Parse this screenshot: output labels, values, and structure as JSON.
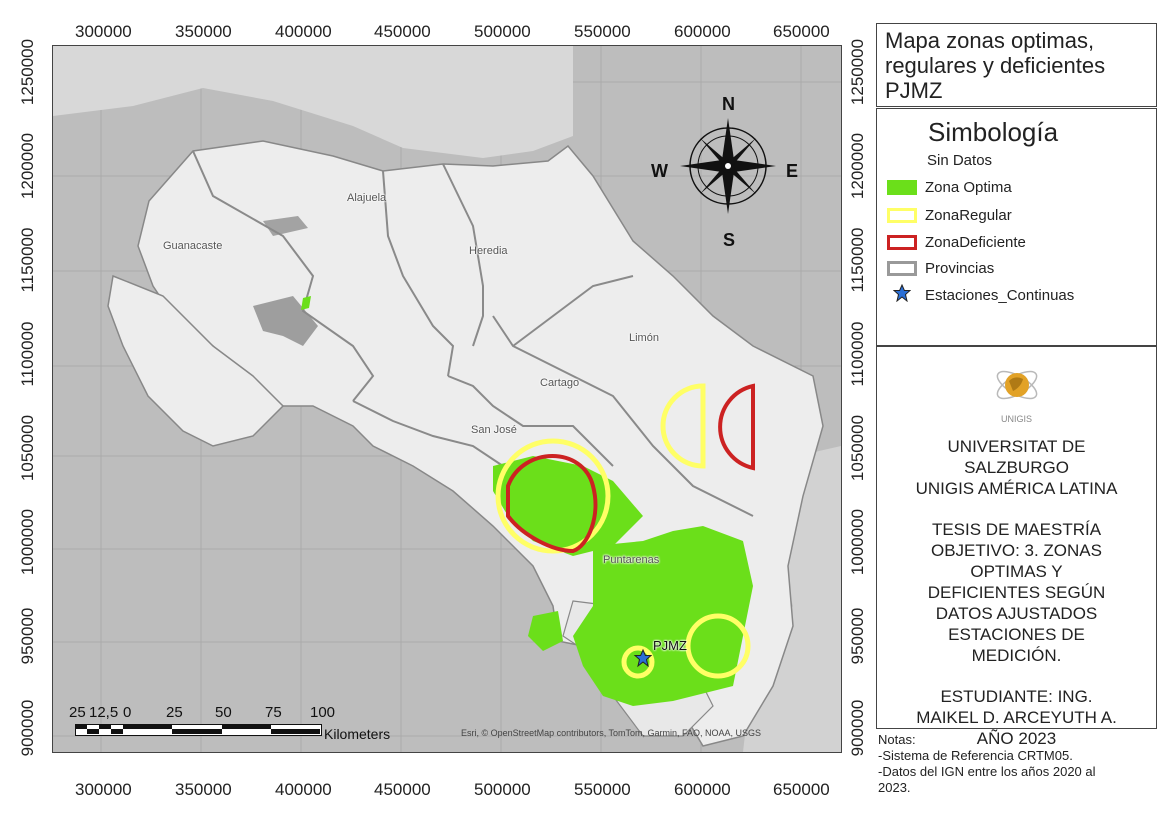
{
  "title": "Mapa zonas optimas, regulares y deficientes PJMZ",
  "legend": {
    "title": "Simbología",
    "items": [
      {
        "label": "Sin Datos",
        "color": "#ffffff"
      },
      {
        "label": "Zona Optima",
        "color": "#6bdf1a"
      },
      {
        "label": "ZonaRegular",
        "color": "#ffff66"
      },
      {
        "label": "ZonaDeficiente",
        "color": "#cc2222"
      },
      {
        "label": "Provincias",
        "color": "#888888"
      },
      {
        "label": "Estaciones_Continuas",
        "color": "#2a6fd6"
      }
    ]
  },
  "institution": {
    "logo_text": "UNIGIS",
    "lines": [
      "UNIVERSITAT DE",
      "SALZBURGO",
      "UNIGIS AMÉRICA LATINA"
    ]
  },
  "thesis": {
    "lines": [
      "TESIS DE MAESTRÍA",
      "OBJETIVO: 3. ZONAS",
      "OPTIMAS Y",
      "DEFICIENTES SEGÚN",
      "DATOS AJUSTADOS",
      "ESTACIONES DE",
      "MEDICIÓN."
    ]
  },
  "student": {
    "lines": [
      "ESTUDIANTE: ING.",
      "MAIKEL D. ARCEYUTH A.",
      "AÑO 2023"
    ]
  },
  "notes": {
    "lines": [
      "Notas:",
      "-Sistema de Referencia CRTM05.",
      "-Datos del IGN entre los años 2020 al",
      "2023."
    ]
  },
  "axes": {
    "x_ticks": [
      "300000",
      "350000",
      "400000",
      "450000",
      "500000",
      "550000",
      "600000",
      "650000"
    ],
    "y_ticks": [
      "1250000",
      "1200000",
      "1150000",
      "1100000",
      "1050000",
      "1000000",
      "950000",
      "900000"
    ]
  },
  "compass": {
    "n": "N",
    "s": "S",
    "e": "E",
    "w": "W"
  },
  "places": [
    {
      "name": "Alajuela"
    },
    {
      "name": "Guanacaste"
    },
    {
      "name": "Heredia"
    },
    {
      "name": "Limón"
    },
    {
      "name": "Cartago"
    },
    {
      "name": "San José"
    },
    {
      "name": "Puntarenas"
    }
  ],
  "station_label": "PJMZ",
  "scalebar": {
    "labels": [
      "25",
      "12,5",
      "0",
      "25",
      "50",
      "75",
      "100"
    ],
    "unit": "Kilometers"
  },
  "attribution": "Esri, © OpenStreetMap contributors, TomTom, Garmin, FAO, NOAA, USGS"
}
